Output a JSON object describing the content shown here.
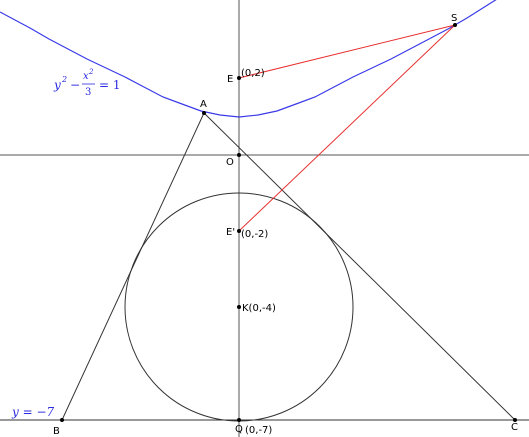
{
  "points": {
    "S": "S",
    "E": "E",
    "E_coord": "(0,2)",
    "A": "A",
    "O": "O",
    "E_prime": "E'",
    "E_prime_coord": "(0,-2)",
    "K": "K(0,-4)",
    "B": "B",
    "Q": "Q",
    "Q_coord": "(0,-7)",
    "C": "C"
  },
  "equation": {
    "y": "y",
    "y_exp": "2",
    "minus": "−",
    "num": "x",
    "num_exp": "2",
    "den": "3",
    "rhs": "= 1"
  },
  "line_label": "y = −7"
}
